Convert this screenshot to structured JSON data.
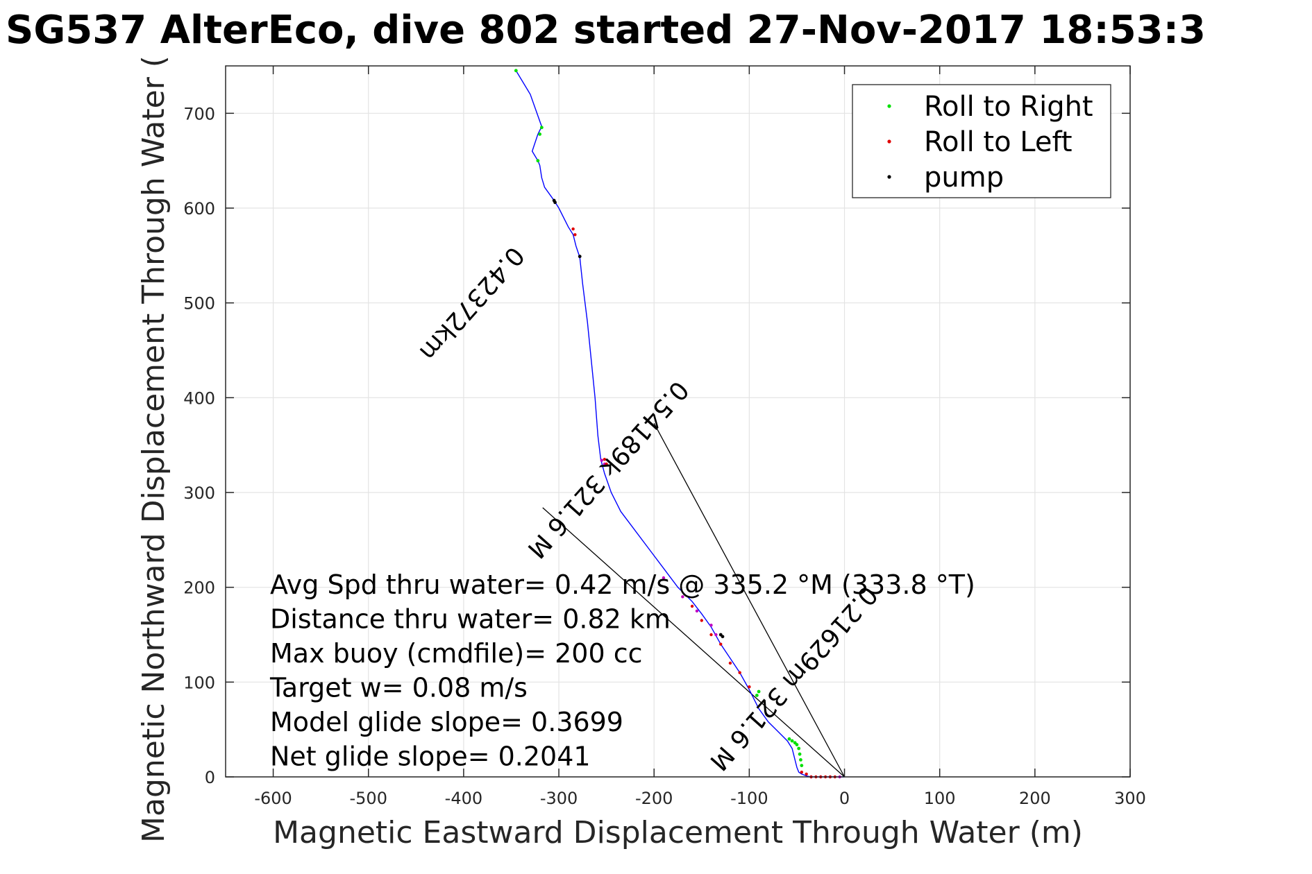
{
  "chart_data": {
    "type": "line",
    "title": "SG537 AlterEco, dive 802 started 27-Nov-2017 18:53:3",
    "xlabel": "Magnetic Eastward Displacement Through Water (m)",
    "ylabel": "Magnetic Northward Displacement Through Water (",
    "xlim": [
      -650,
      300
    ],
    "ylim": [
      0,
      750
    ],
    "xticks": [
      -600,
      -500,
      -400,
      -300,
      -200,
      -100,
      0,
      100,
      200,
      300
    ],
    "xtick_labels": [
      "-600",
      "-500",
      "-400",
      "-300",
      "-200",
      "-100",
      "0",
      "100",
      "200",
      "300"
    ],
    "yticks": [
      0,
      100,
      200,
      300,
      400,
      500,
      600,
      700
    ],
    "ytick_labels": [
      "0",
      "100",
      "200",
      "300",
      "400",
      "500",
      "600",
      "700"
    ],
    "grid": true,
    "legend_position": "top-right",
    "legend": [
      {
        "label": "Roll to Right",
        "color": "#00e000"
      },
      {
        "label": "Roll to Left",
        "color": "#e00000"
      },
      {
        "label": "pump",
        "color": "#000000"
      }
    ],
    "colors": {
      "track": "#0000ff",
      "heading_line": "#000000",
      "roll_right": "#00e000",
      "roll_left": "#e00000",
      "pump": "#000000",
      "magenta": "#c000c0"
    },
    "track": {
      "x": [
        0,
        -5,
        -15,
        -28,
        -35,
        -40,
        -45,
        -48,
        -50,
        -55,
        -60,
        -70,
        -80,
        -90,
        -95,
        -100,
        -110,
        -120,
        -130,
        -140,
        -150,
        -160,
        -175,
        -190,
        -205,
        -220,
        -235,
        -245,
        -252,
        -256,
        -259,
        -262,
        -266,
        -270,
        -275,
        -278,
        -282,
        -285,
        -290,
        -300,
        -305,
        -315,
        -318,
        -320,
        -322,
        -325,
        -328,
        -322,
        -318,
        -330,
        -345
      ],
      "y": [
        0,
        0,
        0,
        0,
        0,
        1,
        3,
        5,
        10,
        30,
        38,
        48,
        58,
        72,
        82,
        92,
        110,
        125,
        140,
        158,
        172,
        185,
        200,
        220,
        240,
        260,
        280,
        300,
        320,
        335,
        360,
        400,
        440,
        480,
        520,
        548,
        560,
        572,
        580,
        600,
        608,
        622,
        632,
        645,
        650,
        655,
        660,
        678,
        686,
        720,
        745
      ]
    },
    "roll_right_points": {
      "x": [
        -45,
        -46,
        -47,
        -48,
        -50,
        -52,
        -55,
        -58,
        -90,
        -92,
        -318,
        -322,
        -320,
        -345
      ],
      "y": [
        12,
        18,
        24,
        30,
        34,
        36,
        38,
        40,
        90,
        86,
        685,
        650,
        678,
        745
      ]
    },
    "roll_left_points": {
      "x": [
        -10,
        -15,
        -20,
        -25,
        -30,
        -35,
        -40,
        -45,
        -100,
        -110,
        -120,
        -130,
        -140,
        -150,
        -160,
        -250,
        -252,
        -285,
        -283
      ],
      "y": [
        0,
        0,
        0,
        0,
        0,
        0,
        3,
        5,
        95,
        110,
        120,
        140,
        150,
        165,
        180,
        330,
        335,
        578,
        572
      ]
    },
    "pump_points": {
      "x": [
        -305,
        -304,
        -278,
        -130,
        -128
      ],
      "y": [
        608,
        606,
        549,
        150,
        148
      ]
    },
    "magenta_points": {
      "x": [
        -5,
        -15,
        -25,
        -35,
        -135,
        -140,
        -155,
        -170,
        -190,
        -252,
        -255
      ],
      "y": [
        0,
        0,
        0,
        0,
        150,
        160,
        175,
        190,
        210,
        330,
        334
      ]
    },
    "heading_lines": [
      {
        "x": [
          0,
          -317
        ],
        "y": [
          0,
          284
        ]
      },
      {
        "x": [
          0,
          -200
        ],
        "y": [
          0,
          373
        ]
      }
    ],
    "annotations": [
      "Avg Spd thru water=  0.42 m/s @ 335.2 °M (333.8 °T)",
      "Distance thru water=  0.82 km",
      "Max buoy (cmdfile)= 200 cc",
      "Target w= 0.08 m/s",
      "Model glide slope= 0.3699",
      "Net glide slope= 0.2041"
    ],
    "rotated_labels": [
      {
        "text": "0.42372km",
        "x": -398,
        "y": 505
      },
      {
        "text": "0.54189k 321.6 M",
        "x": -255,
        "y": 330
      },
      {
        "text": "0.21629m 321.6 M",
        "x": -60,
        "y": 110
      }
    ]
  }
}
